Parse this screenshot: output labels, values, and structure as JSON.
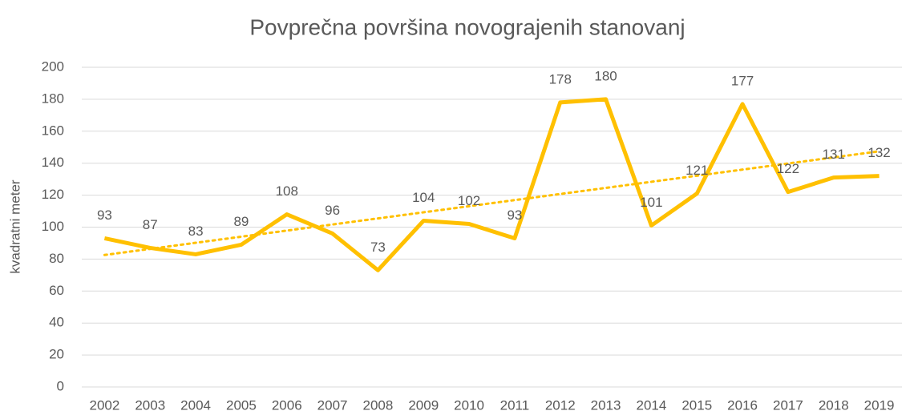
{
  "chart_data": {
    "type": "line",
    "title": "Povprečna površina novograjenih stanovanj",
    "ylabel": "kvadratni meter",
    "categories": [
      "2002",
      "2003",
      "2004",
      "2005",
      "2006",
      "2007",
      "2008",
      "2009",
      "2010",
      "2011",
      "2012",
      "2013",
      "2014",
      "2015",
      "2016",
      "2017",
      "2018",
      "2019"
    ],
    "values": [
      93,
      87,
      83,
      89,
      108,
      96,
      73,
      104,
      102,
      93,
      178,
      180,
      101,
      121,
      177,
      122,
      131,
      132
    ],
    "color": "#ffc000",
    "trendline": "linear",
    "ylim": [
      0,
      200
    ],
    "yticks": [
      0,
      20,
      40,
      60,
      80,
      100,
      120,
      140,
      160,
      180,
      200
    ],
    "grid": true
  }
}
